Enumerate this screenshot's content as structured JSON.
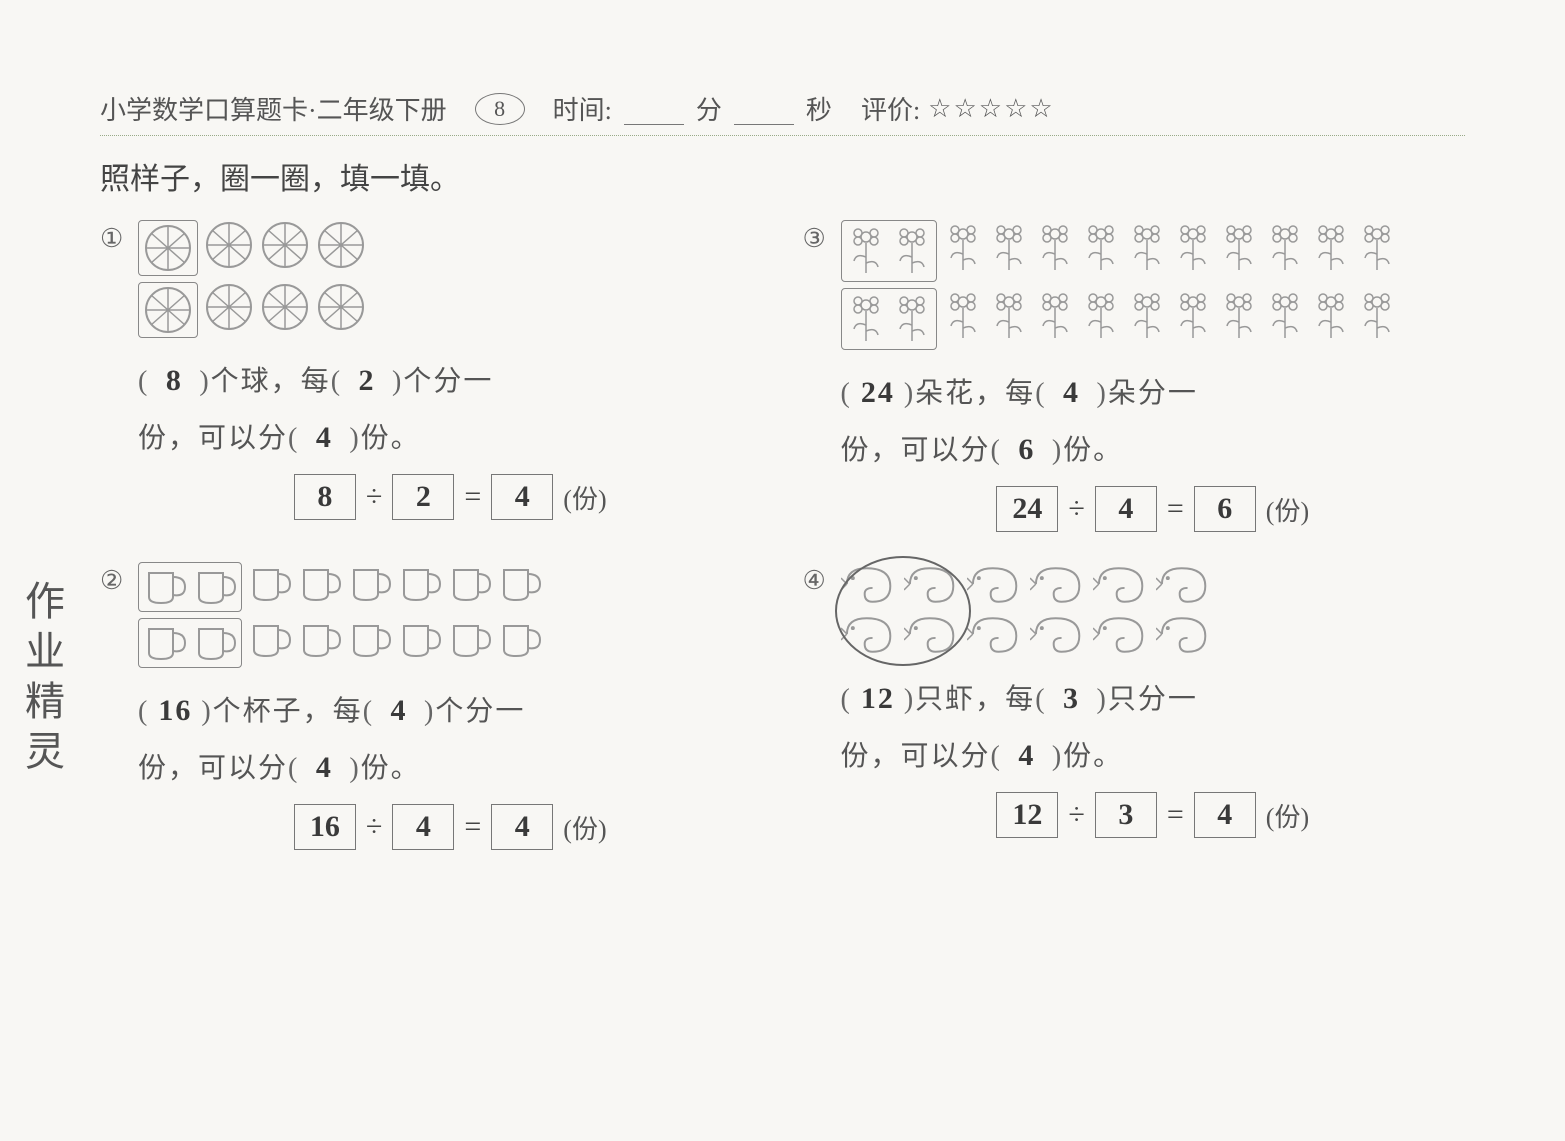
{
  "header": {
    "title": "小学数学口算题卡·二年级下册",
    "page_number": "8",
    "time_label": "时间:",
    "min_unit": "分",
    "sec_unit": "秒",
    "rating_label": "评价:",
    "stars": "☆☆☆☆☆"
  },
  "instruction": "照样子，圈一圈，填一填。",
  "margin_note": "作业精灵",
  "colors": {
    "background": "#f8f7f4",
    "text": "#444444",
    "border": "#777777",
    "handwriting": "#3a3a3a",
    "icon_stroke": "#999999"
  },
  "typography": {
    "body_fontsize": 28,
    "header_fontsize": 26,
    "instruction_fontsize": 30,
    "hand_fontsize": 30
  },
  "icons": {
    "ball_size": 50,
    "cup_size": 44,
    "flower_size": 40,
    "shrimp_size": 44
  },
  "problems": {
    "p1": {
      "number_glyph": "①",
      "item_label": "个球",
      "group_label_prefix": "，每",
      "group_label_suffix": "个分一",
      "line2_prefix": "份，可以分",
      "line2_suffix": "份。",
      "total": "8",
      "per_group": "2",
      "groups": "4",
      "eq_a": "8",
      "eq_b": "2",
      "eq_c": "4",
      "eq_unit": "(份)",
      "rows": 2,
      "cols": 4,
      "circle_first_n": 2
    },
    "p2": {
      "number_glyph": "②",
      "item_label": "个杯子",
      "group_label_prefix": "，每",
      "group_label_suffix": "个分一",
      "line2_prefix": "份，可以分",
      "line2_suffix": "份。",
      "total": "16",
      "per_group": "4",
      "groups": "4",
      "eq_a": "16",
      "eq_b": "4",
      "eq_c": "4",
      "eq_unit": "(份)",
      "rows": 2,
      "cols": 8,
      "circle_first_n": 2
    },
    "p3": {
      "number_glyph": "③",
      "item_label": "朵花",
      "group_label_prefix": "，每",
      "group_label_suffix": "朵分一",
      "line2_prefix": "份，可以分",
      "line2_suffix": "份。",
      "total": "24",
      "per_group": "4",
      "groups": "6",
      "eq_a": "24",
      "eq_b": "4",
      "eq_c": "6",
      "eq_unit": "(份)",
      "rows": 2,
      "cols": 12,
      "circle_first_n": 2
    },
    "p4": {
      "number_glyph": "④",
      "item_label": "只虾",
      "group_label_prefix": "，每",
      "group_label_suffix": "只分一",
      "line2_prefix": "份，可以分",
      "line2_suffix": "份。",
      "total": "12",
      "per_group": "3",
      "groups": "4",
      "eq_a": "12",
      "eq_b": "3",
      "eq_c": "4",
      "eq_unit": "(份)",
      "rows": 2,
      "cols": 6,
      "circle_first_n": 2
    }
  },
  "operators": {
    "divide": "÷",
    "equals": "="
  }
}
